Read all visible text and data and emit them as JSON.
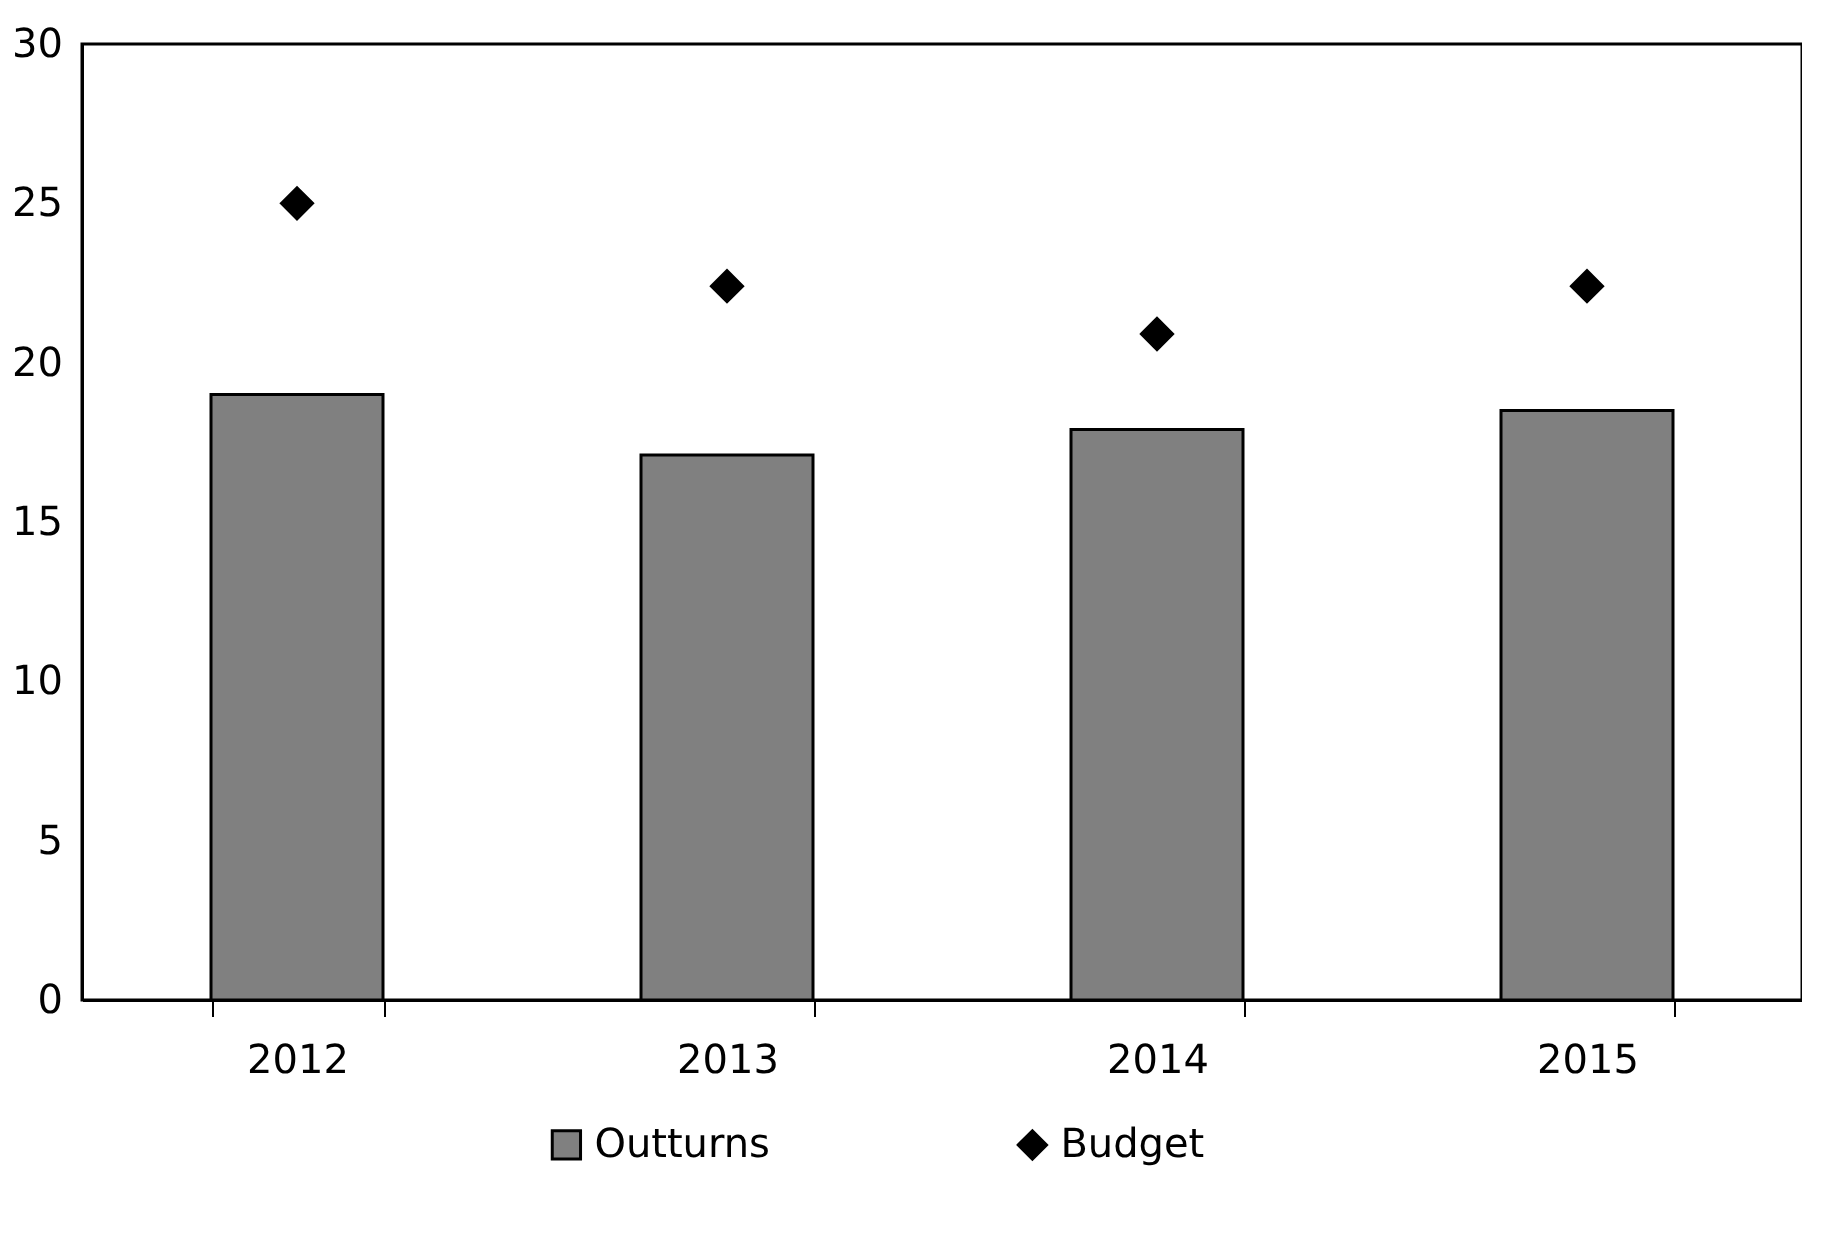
{
  "chart_data": {
    "type": "bar",
    "categories": [
      "2012",
      "2013",
      "2014",
      "2015"
    ],
    "series": [
      {
        "name": "Outturns",
        "color": "#808080",
        "values": [
          19.0,
          17.1,
          17.9,
          18.5
        ]
      },
      {
        "name": "Budget",
        "type": "scatter",
        "color": "#000000",
        "values": [
          25.0,
          22.4,
          20.9,
          22.4
        ]
      }
    ],
    "ylim": [
      0,
      30
    ],
    "yticks": [
      0,
      5,
      10,
      15,
      20,
      25,
      30
    ],
    "grid": false,
    "legend": "bottom",
    "marker": "diamond"
  }
}
